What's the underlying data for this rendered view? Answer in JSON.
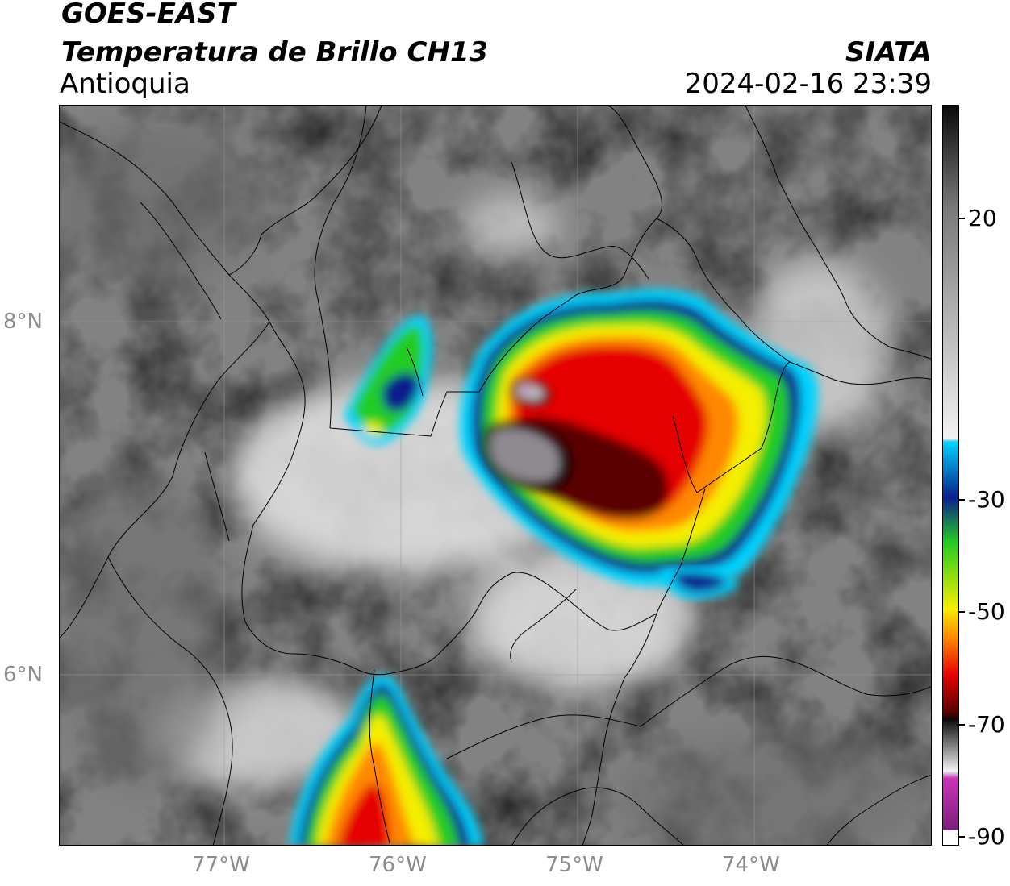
{
  "header": {
    "satellite": "GOES-EAST",
    "product": "Temperatura de Brillo CH13",
    "region": "Antioquia",
    "agency": "SIATA",
    "datetime": "2024-02-16 23:39"
  },
  "map": {
    "lon_ticks": [
      "77°W",
      "76°W",
      "75°W",
      "74°W"
    ],
    "lat_ticks": [
      "8°N",
      "6°N"
    ],
    "gridlines": true
  },
  "colorbar": {
    "ticks": [
      "20",
      "-30",
      "-50",
      "-70",
      "-90"
    ],
    "colors": {
      "warm_gray": "#7a7a7a",
      "cold_white": "#f2f2f2",
      "cyan": "#00d4ff",
      "blue": "#0a1f8c",
      "green": "#22cc22",
      "yellow": "#f5ee00",
      "orange": "#ff8800",
      "red": "#e60000",
      "dark_red": "#5a0000",
      "black": "#0a0a0a",
      "magenta": "#cc33bb"
    }
  }
}
